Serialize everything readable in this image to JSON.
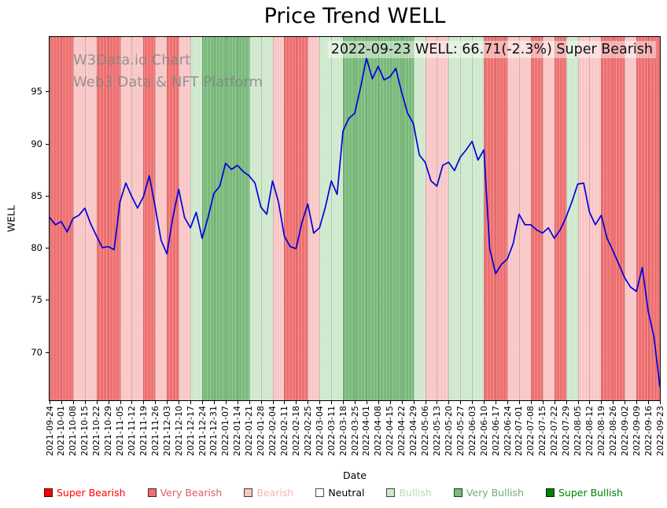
{
  "annotation": "2022-09-23 WELL: 66.71(-2.3%) Super Bearish",
  "watermark": {
    "line1": "W3Data.io Chart",
    "line2": "Web3 Data & NFT Platform"
  },
  "legend": [
    {
      "label": "Super Bearish",
      "color": "#ff0000",
      "text_color": "#ff0000"
    },
    {
      "label": "Very Bearish",
      "color": "#ee7070",
      "text_color": "#d96060"
    },
    {
      "label": "Bearish",
      "color": "#f9c6c6",
      "text_color": "#f0b4b4"
    },
    {
      "label": "Neutral",
      "color": "#ffffff",
      "text_color": "#000000"
    },
    {
      "label": "Bullish",
      "color": "#cfe8cc",
      "text_color": "#b9d9b6"
    },
    {
      "label": "Very Bullish",
      "color": "#79ba7b",
      "text_color": "#6fae71"
    },
    {
      "label": "Super Bullish",
      "color": "#008000",
      "text_color": "#008000"
    }
  ],
  "chart_data": {
    "type": "line",
    "title": "Price Trend WELL",
    "xlabel": "Date",
    "ylabel": "WELL",
    "ylim": [
      65.45,
      100.32
    ],
    "yticks": [
      70,
      75,
      80,
      85,
      90,
      95
    ],
    "grid": "vertical-dotted",
    "legend_position": "bottom",
    "x_tick_labels": [
      "2021-09-24",
      "2021-10-01",
      "2021-10-08",
      "2021-10-15",
      "2021-10-22",
      "2021-10-29",
      "2021-11-05",
      "2021-11-12",
      "2021-11-19",
      "2021-11-26",
      "2021-12-03",
      "2021-12-10",
      "2021-12-17",
      "2021-12-24",
      "2021-12-31",
      "2022-01-07",
      "2022-01-14",
      "2022-01-21",
      "2022-01-28",
      "2022-02-04",
      "2022-02-11",
      "2022-02-18",
      "2022-02-25",
      "2022-03-04",
      "2022-03-11",
      "2022-03-18",
      "2022-03-25",
      "2022-04-01",
      "2022-04-08",
      "2022-04-15",
      "2022-04-22",
      "2022-04-29",
      "2022-05-06",
      "2022-05-13",
      "2022-05-20",
      "2022-05-27",
      "2022-06-03",
      "2022-06-10",
      "2022-06-17",
      "2022-06-24",
      "2022-07-01",
      "2022-07-08",
      "2022-07-15",
      "2022-07-22",
      "2022-07-29",
      "2022-08-05",
      "2022-08-12",
      "2022-08-19",
      "2022-08-26",
      "2022-09-02",
      "2022-09-09",
      "2022-09-16",
      "2022-09-23"
    ],
    "series": [
      {
        "name": "WELL",
        "color": "#0000dd",
        "points_per_week": 2,
        "values": [
          83.0,
          82.3,
          82.6,
          81.6,
          82.9,
          83.2,
          83.9,
          82.4,
          81.2,
          80.1,
          80.2,
          79.9,
          84.5,
          86.3,
          85.0,
          83.9,
          85.0,
          87.0,
          84.0,
          80.8,
          79.5,
          83.0,
          85.7,
          83.0,
          82.0,
          83.5,
          81.0,
          83.0,
          85.3,
          86.0,
          88.2,
          87.6,
          88.0,
          87.4,
          87.0,
          86.3,
          84.0,
          83.3,
          86.5,
          84.5,
          81.2,
          80.2,
          80.0,
          82.5,
          84.3,
          81.5,
          82.0,
          84.0,
          86.5,
          85.2,
          91.3,
          92.5,
          93.0,
          95.5,
          98.3,
          96.3,
          97.5,
          96.2,
          96.5,
          97.3,
          95.0,
          93.0,
          92.0,
          89.0,
          88.3,
          86.5,
          86.0,
          88.0,
          88.3,
          87.5,
          88.8,
          89.5,
          90.3,
          88.5,
          89.5,
          80.0,
          77.6,
          78.5,
          79.0,
          80.5,
          83.3,
          82.3,
          82.3,
          81.8,
          81.5,
          82.0,
          81.0,
          81.8,
          83.0,
          84.5,
          86.2,
          86.3,
          83.5,
          82.3,
          83.2,
          81.0,
          79.8,
          78.5,
          77.2,
          76.3,
          75.9,
          78.2,
          74.0,
          71.5,
          66.71
        ]
      }
    ],
    "band_colors": {
      "super_bearish": "#ff0000",
      "very_bearish": "#ee7070",
      "bearish": "#f9c6c6",
      "neutral": "#ffffff",
      "bullish": "#cfe8cc",
      "very_bullish": "#79ba7b",
      "super_bullish": "#008000"
    },
    "weekly_sentiment": [
      "very_bearish",
      "very_bearish",
      "bearish",
      "bearish",
      "very_bearish",
      "very_bearish",
      "bearish",
      "bearish",
      "very_bearish",
      "bearish",
      "very_bearish",
      "bearish",
      "bullish",
      "very_bullish",
      "very_bullish",
      "very_bullish",
      "very_bullish",
      "bullish",
      "bullish",
      "bearish",
      "very_bearish",
      "very_bearish",
      "bearish",
      "bullish",
      "bullish",
      "very_bullish",
      "very_bullish",
      "very_bullish",
      "very_bullish",
      "very_bullish",
      "very_bullish",
      "bullish",
      "bearish",
      "bearish",
      "bullish",
      "bullish",
      "bullish",
      "very_bearish",
      "very_bearish",
      "bearish",
      "bearish",
      "very_bearish",
      "bearish",
      "very_bearish",
      "bullish",
      "bearish",
      "bearish",
      "very_bearish",
      "very_bearish",
      "bearish",
      "very_bearish",
      "very_bearish"
    ]
  }
}
